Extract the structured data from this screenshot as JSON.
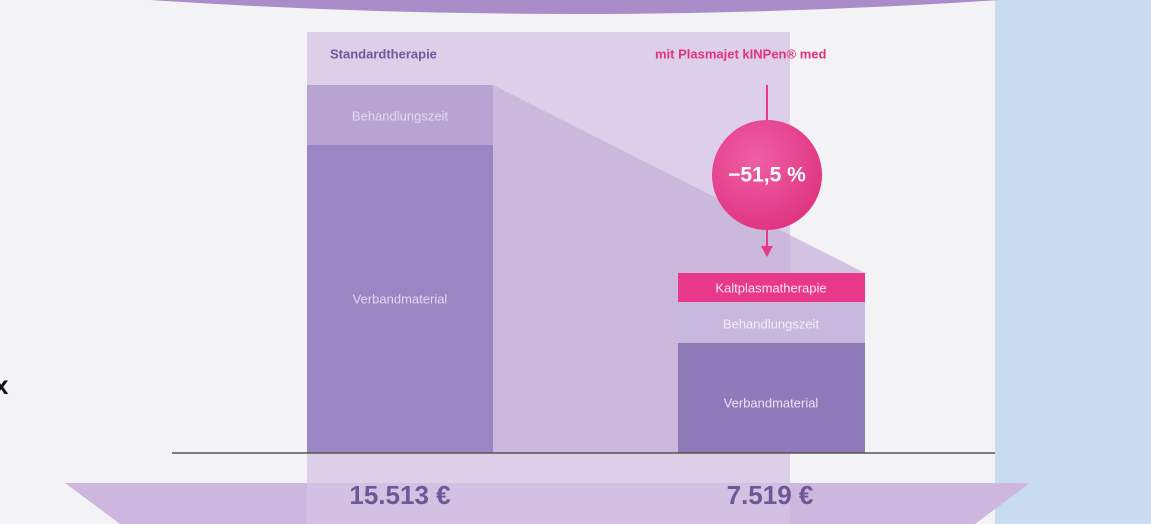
{
  "header": {
    "left": "Standardtherapie",
    "right": "mit Plasmajet kINPen® med"
  },
  "standard": {
    "segments": [
      "Behandlungszeit",
      "Verbandmaterial"
    ],
    "total": "15.513 €"
  },
  "plasma": {
    "segments": [
      "Kaltplasmatherapie",
      "Behandlungszeit",
      "Verbandmaterial"
    ],
    "total": "7.519 €"
  },
  "reduction": "−51,5 %",
  "edge_text": "x"
}
